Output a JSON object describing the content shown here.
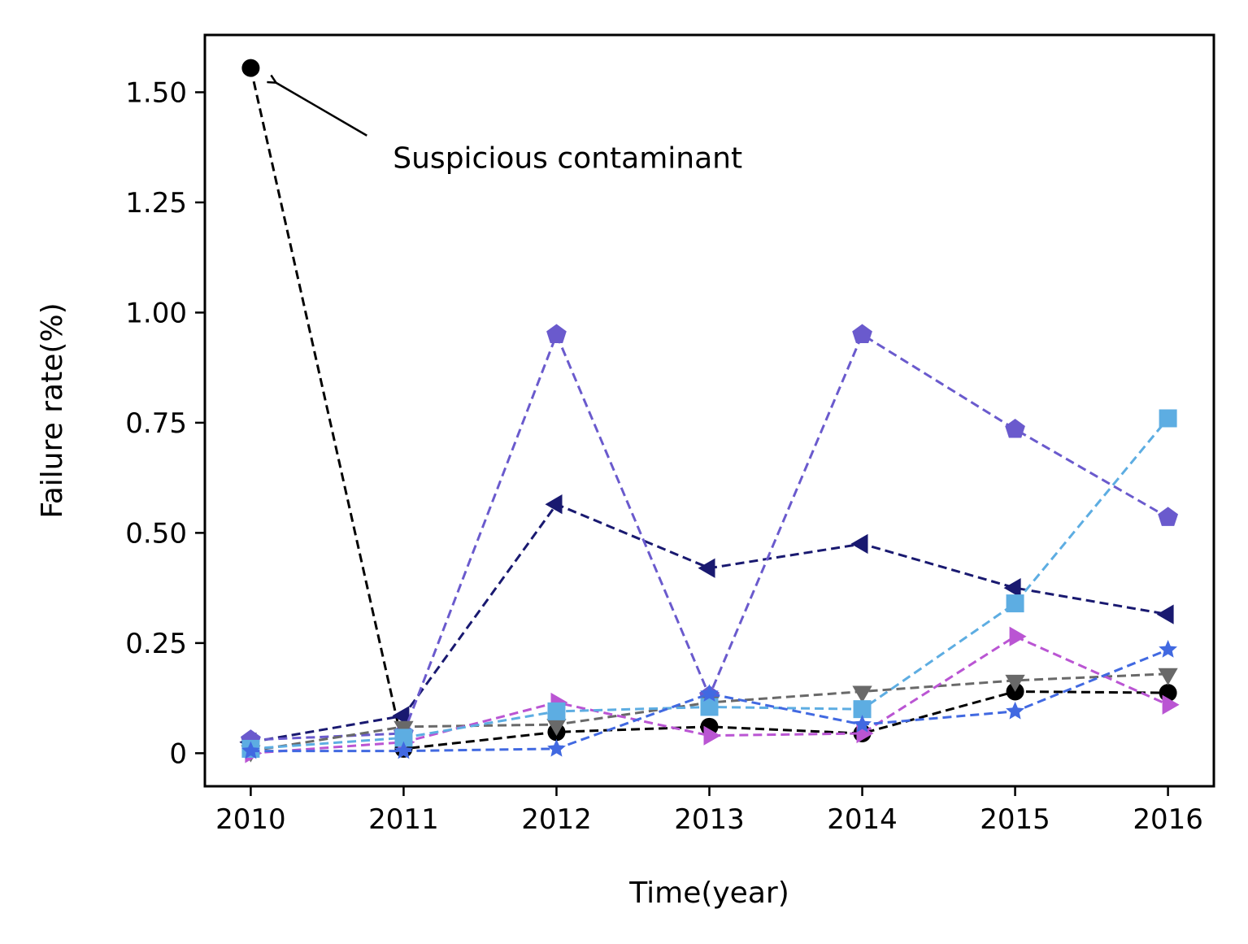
{
  "chart_data": {
    "type": "line",
    "title": "",
    "xlabel": "Time(year)",
    "ylabel": "Failure rate(%)",
    "x": [
      2010,
      2011,
      2012,
      2013,
      2014,
      2015,
      2016
    ],
    "xlim": [
      2009.7,
      2016.3
    ],
    "ylim": [
      -0.075,
      1.63
    ],
    "x_ticks": [
      2010,
      2011,
      2012,
      2013,
      2014,
      2015,
      2016
    ],
    "x_tick_labels": [
      "2010",
      "2011",
      "2012",
      "2013",
      "2014",
      "2015",
      "2016"
    ],
    "y_ticks": [
      0,
      0.25,
      0.5,
      0.75,
      1.0,
      1.25,
      1.5
    ],
    "y_tick_labels": [
      "0",
      "0.25",
      "0.50",
      "0.75",
      "1.00",
      "1.25",
      "1.50"
    ],
    "grid": false,
    "legend": "none",
    "series": [
      {
        "color": "#000000",
        "marker": "circle",
        "values": [
          1.555,
          0.01,
          0.048,
          0.06,
          0.045,
          0.14,
          0.137
        ]
      },
      {
        "color": "#191970",
        "marker": "triangle-left",
        "values": [
          0.025,
          0.085,
          0.565,
          0.42,
          0.475,
          0.375,
          0.315
        ]
      },
      {
        "color": "#6a5acd",
        "marker": "pentagon",
        "values": [
          0.03,
          0.045,
          0.95,
          0.13,
          0.95,
          0.735,
          0.535
        ]
      },
      {
        "color": "#696969",
        "marker": "triangle-down",
        "values": [
          0.005,
          0.06,
          0.065,
          0.115,
          0.14,
          0.165,
          0.18
        ]
      },
      {
        "color": "#ba55d3",
        "marker": "triangle-right",
        "values": [
          0.0,
          0.025,
          0.115,
          0.04,
          0.045,
          0.265,
          0.11
        ]
      },
      {
        "color": "#5dade2",
        "marker": "square",
        "values": [
          0.01,
          0.035,
          0.095,
          0.105,
          0.1,
          0.34,
          0.76
        ]
      },
      {
        "color": "#4169e1",
        "marker": "star",
        "values": [
          0.005,
          0.005,
          0.01,
          0.135,
          0.065,
          0.095,
          0.235
        ]
      }
    ],
    "annotations": [
      {
        "text": "Suspicious contaminant",
        "point": {
          "x": 2010,
          "y": 1.555
        },
        "text_pos": {
          "x": 2010.93,
          "y": 1.35
        }
      }
    ]
  }
}
